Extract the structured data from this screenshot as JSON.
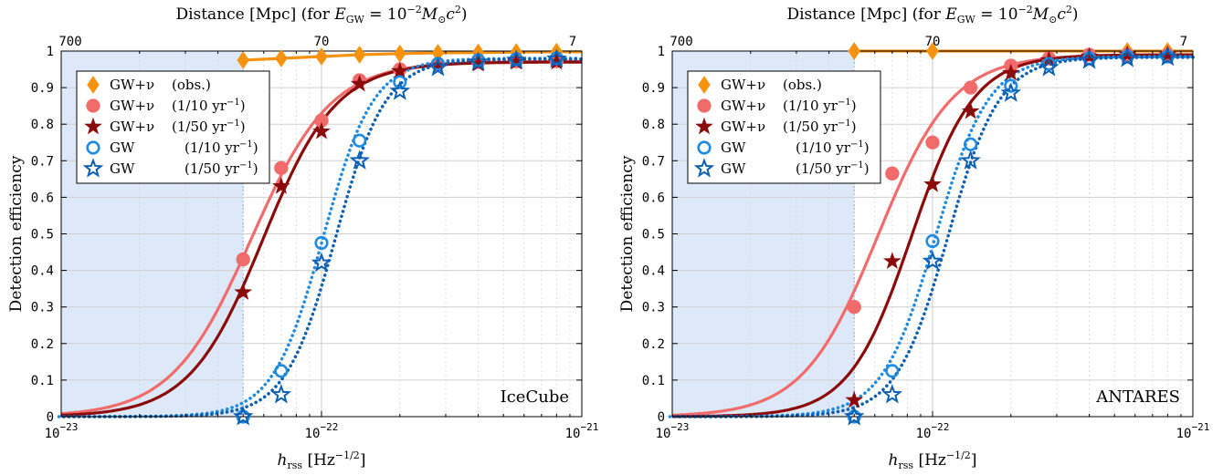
{
  "chart_data": [
    {
      "type": "scatter",
      "panel_label": "IceCube",
      "top_xlabel": "Distance [Mpc] (for E_GW = 10^-2 M_sun c^2)",
      "top_ticks": [
        "700",
        "70",
        "7"
      ],
      "xlabel": "h_rss [Hz^-1/2]",
      "ylabel": "Detection efficiency",
      "xscale": "log",
      "xlim": [
        1e-23,
        1e-21
      ],
      "ylim": [
        0,
        1
      ],
      "x_tick_labels": [
        "10^-23",
        "10^-22",
        "10^-21"
      ],
      "y_ticks": [
        "0",
        "0.1",
        "0.2",
        "0.3",
        "0.4",
        "0.5",
        "0.6",
        "0.7",
        "0.8",
        "0.9",
        "1"
      ],
      "grid": true,
      "legend_position": "top-left",
      "shaded_region": {
        "x_max": 5e-23,
        "color": "#dde8f8"
      },
      "series": [
        {
          "name": "GW+ν (obs.)",
          "marker": "diamond",
          "color": "#f7920e",
          "curve": "solid",
          "x": [
            5e-23,
            7e-23,
            1e-22,
            1.4e-22,
            2e-22,
            2.8e-22,
            4e-22,
            5.6e-22,
            8e-22
          ],
          "y": [
            0.975,
            0.98,
            0.985,
            0.99,
            0.993,
            0.995,
            0.996,
            0.997,
            0.998
          ]
        },
        {
          "name": "GW+ν (1/10 yr⁻¹)",
          "marker": "circle-filled",
          "color": "#f26b6b",
          "curve": "solid",
          "x": [
            5e-23,
            7e-23,
            1e-22,
            1.4e-22,
            2e-22,
            2.8e-22,
            4e-22,
            5.6e-22,
            8e-22
          ],
          "y": [
            0.43,
            0.68,
            0.81,
            0.92,
            0.95,
            0.965,
            0.97,
            0.972,
            0.972
          ]
        },
        {
          "name": "GW+ν (1/50 yr⁻¹)",
          "marker": "star-filled",
          "color": "#8b0a0a",
          "curve": "solid",
          "x": [
            5e-23,
            7e-23,
            1e-22,
            1.4e-22,
            2e-22,
            2.8e-22,
            4e-22,
            5.6e-22,
            8e-22
          ],
          "y": [
            0.34,
            0.63,
            0.78,
            0.91,
            0.945,
            0.96,
            0.965,
            0.97,
            0.97
          ]
        },
        {
          "name": "GW (1/10 yr⁻¹)",
          "marker": "circle-open",
          "color": "#1f8be0",
          "curve": "dotted",
          "x": [
            5e-23,
            7e-23,
            1e-22,
            1.4e-22,
            2e-22,
            2.8e-22,
            4e-22,
            5.6e-22,
            8e-22
          ],
          "y": [
            0.0,
            0.125,
            0.475,
            0.755,
            0.915,
            0.965,
            0.975,
            0.978,
            0.98
          ]
        },
        {
          "name": "GW (1/50 yr⁻¹)",
          "marker": "star-open",
          "color": "#0d5fb3",
          "curve": "dotted",
          "x": [
            5e-23,
            7e-23,
            1e-22,
            1.4e-22,
            2e-22,
            2.8e-22,
            4e-22,
            5.6e-22,
            8e-22
          ],
          "y": [
            0.0,
            0.06,
            0.42,
            0.7,
            0.89,
            0.955,
            0.97,
            0.975,
            0.978
          ]
        }
      ]
    },
    {
      "type": "scatter",
      "panel_label": "ANTARES",
      "top_xlabel": "Distance [Mpc] (for E_GW = 10^-2 M_sun c^2)",
      "top_ticks": [
        "700",
        "70",
        "7"
      ],
      "xlabel": "h_rss [Hz^-1/2]",
      "ylabel": "Detection efficiency",
      "xscale": "log",
      "xlim": [
        1e-23,
        1e-21
      ],
      "ylim": [
        0,
        1
      ],
      "x_tick_labels": [
        "10^-23",
        "10^-22",
        "10^-21"
      ],
      "y_ticks": [
        "0",
        "0.1",
        "0.2",
        "0.3",
        "0.4",
        "0.5",
        "0.6",
        "0.7",
        "0.8",
        "0.9",
        "1"
      ],
      "grid": true,
      "legend_position": "top-left",
      "shaded_region": {
        "x_max": 5e-23,
        "color": "#dde8f8"
      },
      "series": [
        {
          "name": "GW+ν (obs.)",
          "marker": "diamond",
          "color": "#f7920e",
          "curve": "solid",
          "x": [
            5e-23,
            1e-22,
            5.6e-22,
            8e-22
          ],
          "y": [
            1.0,
            1.0,
            1.0,
            1.0
          ]
        },
        {
          "name": "GW+ν (1/10 yr⁻¹)",
          "marker": "circle-filled",
          "color": "#f26b6b",
          "curve": "solid",
          "x": [
            5e-23,
            7e-23,
            1e-22,
            1.4e-22,
            2e-22,
            2.8e-22,
            4e-22,
            5.6e-22,
            8e-22
          ],
          "y": [
            0.3,
            0.665,
            0.75,
            0.9,
            0.96,
            0.98,
            0.99,
            0.99,
            0.99
          ]
        },
        {
          "name": "GW+ν (1/50 yr⁻¹)",
          "marker": "star-filled",
          "color": "#8b0a0a",
          "curve": "solid",
          "x": [
            5e-23,
            7e-23,
            1e-22,
            1.4e-22,
            2e-22,
            2.8e-22,
            4e-22,
            5.6e-22,
            8e-22
          ],
          "y": [
            0.045,
            0.425,
            0.635,
            0.835,
            0.94,
            0.975,
            0.985,
            0.99,
            0.99
          ]
        },
        {
          "name": "GW (1/10 yr⁻¹)",
          "marker": "circle-open",
          "color": "#1f8be0",
          "curve": "dotted",
          "x": [
            5e-23,
            7e-23,
            1e-22,
            1.4e-22,
            2e-22,
            2.8e-22,
            4e-22,
            5.6e-22,
            8e-22
          ],
          "y": [
            0.0,
            0.125,
            0.48,
            0.745,
            0.905,
            0.965,
            0.98,
            0.985,
            0.985
          ]
        },
        {
          "name": "GW (1/50 yr⁻¹)",
          "marker": "star-open",
          "color": "#0d5fb3",
          "curve": "dotted",
          "x": [
            5e-23,
            7e-23,
            1e-22,
            1.4e-22,
            2e-22,
            2.8e-22,
            4e-22,
            5.6e-22,
            8e-22
          ],
          "y": [
            0.0,
            0.06,
            0.425,
            0.7,
            0.885,
            0.955,
            0.975,
            0.98,
            0.983
          ]
        }
      ]
    }
  ],
  "legend_entries": [
    {
      "main": "GW+ν",
      "rate": "(obs.)",
      "sup": ""
    },
    {
      "main": "GW+ν",
      "rate": "(1/10 yr",
      "sup": "−1"
    },
    {
      "main": "GW+ν",
      "rate": "(1/50 yr",
      "sup": "−1"
    },
    {
      "main": "GW",
      "rate": "(1/10 yr",
      "sup": "−1"
    },
    {
      "main": "GW",
      "rate": "(1/50 yr",
      "sup": "−1"
    }
  ],
  "labels": {
    "top_title_prefix": "Distance [Mpc] (for ",
    "top_title_E": "E",
    "top_title_Esub": "GW",
    "top_title_mid": " = 10",
    "top_title_exp": "−2",
    "top_title_M": "M",
    "top_title_Msub": "⊙",
    "top_title_c": "c",
    "top_title_csup": "2",
    "top_title_suffix": ")",
    "x_h": "h",
    "x_hsub": "rss",
    "x_unit": " [Hz",
    "x_unit_sup": "−1/2",
    "x_unit_close": "]",
    "x_tick_base": "10",
    "x_tick_exps": [
      "−23",
      "−22",
      "−21"
    ]
  }
}
